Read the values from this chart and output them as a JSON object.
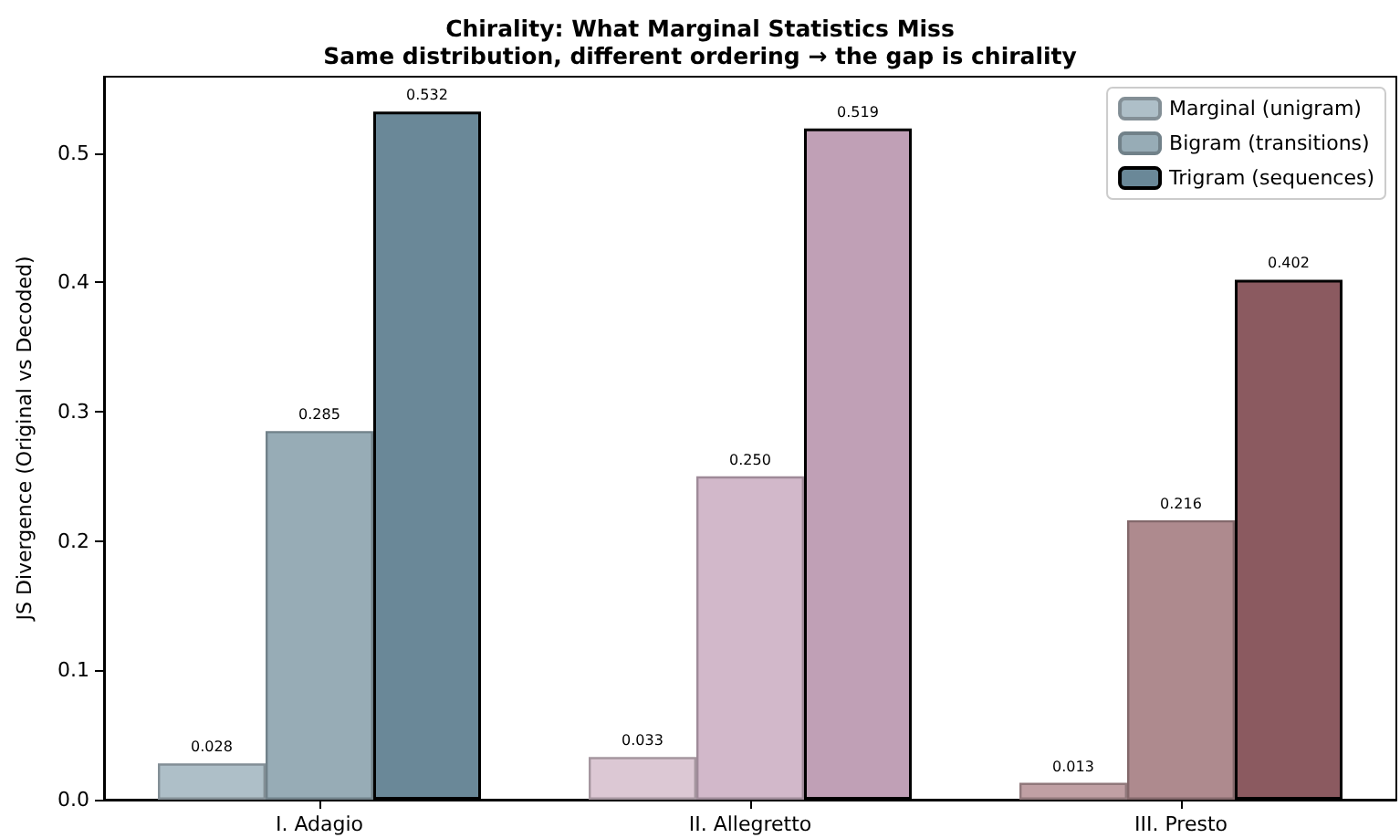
{
  "chart_data": {
    "type": "bar",
    "title": "Chirality: What Marginal Statistics Miss\nSame distribution, different ordering → the gap is chirality",
    "ylabel": "JS Divergence (Original vs Decoded)",
    "categories": [
      "I. Adagio",
      "II. Allegretto",
      "III. Presto"
    ],
    "series": [
      {
        "name": "Marginal (unigram)",
        "color": "#aebfc8",
        "colors": [
          "#aebfc8",
          "#dcc8d4",
          "#c0a0a4"
        ],
        "values": [
          0.028,
          0.033,
          0.013
        ],
        "value_labels": [
          "0.028",
          "0.033",
          "0.013"
        ]
      },
      {
        "name": "Bigram (transitions)",
        "color": "#97acb6",
        "colors": [
          "#97acb6",
          "#d2b8ca",
          "#ae8a8e"
        ],
        "values": [
          0.285,
          0.25,
          0.216
        ],
        "value_labels": [
          "0.285",
          "0.250",
          "0.216"
        ]
      },
      {
        "name": "Trigram (sequences)",
        "color": "#6a8898",
        "colors": [
          "#6a8898",
          "#c0a0b6",
          "#8b5a60"
        ],
        "values": [
          0.532,
          0.519,
          0.402
        ],
        "value_labels": [
          "0.532",
          "0.519",
          "0.402"
        ]
      }
    ],
    "ylim": [
      0,
      0.559
    ],
    "yticks": [
      {
        "value": 0,
        "label": "0.0"
      },
      {
        "value": 0.1,
        "label": "0.1"
      },
      {
        "value": 0.2,
        "label": "0.2"
      },
      {
        "value": 0.3,
        "label": "0.3"
      },
      {
        "value": 0.4,
        "label": "0.4"
      },
      {
        "value": 0.5,
        "label": "0.5"
      }
    ],
    "grid": false,
    "legend": "top right"
  }
}
